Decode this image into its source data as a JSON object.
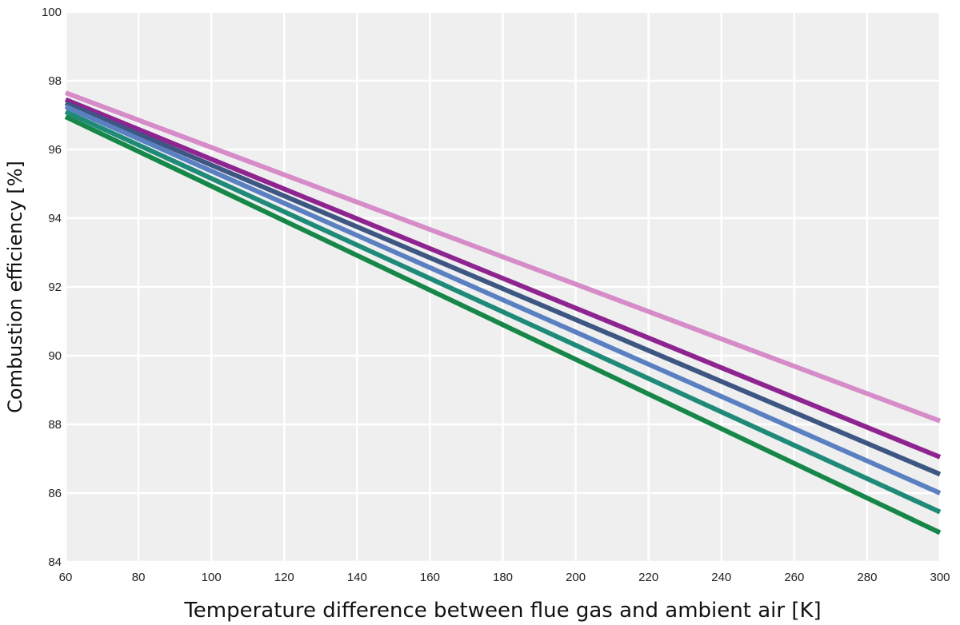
{
  "chart_data": {
    "type": "line",
    "title": "",
    "xlabel": "Temperature difference between flue gas and ambient air [K]",
    "ylabel": "Combustion efficiency [%]",
    "xlim": [
      60,
      300
    ],
    "ylim": [
      84,
      100
    ],
    "xticks": [
      60,
      80,
      100,
      120,
      140,
      160,
      180,
      200,
      220,
      240,
      260,
      280,
      300
    ],
    "yticks": [
      84,
      86,
      88,
      90,
      92,
      94,
      96,
      98,
      100
    ],
    "grid": true,
    "legend": "none",
    "series": [
      {
        "color": "#d68cc8",
        "x": [
          60,
          300
        ],
        "y": [
          97.65,
          88.1
        ]
      },
      {
        "color": "#8e2490",
        "x": [
          60,
          300
        ],
        "y": [
          97.45,
          87.05
        ]
      },
      {
        "color": "#3d5682",
        "x": [
          60,
          300
        ],
        "y": [
          97.35,
          86.55
        ]
      },
      {
        "color": "#5a80c2",
        "x": [
          60,
          300
        ],
        "y": [
          97.25,
          86.0
        ]
      },
      {
        "color": "#1f8a78",
        "x": [
          60,
          300
        ],
        "y": [
          97.1,
          85.45
        ]
      },
      {
        "color": "#168748",
        "x": [
          60,
          300
        ],
        "y": [
          96.95,
          84.85
        ]
      }
    ]
  }
}
